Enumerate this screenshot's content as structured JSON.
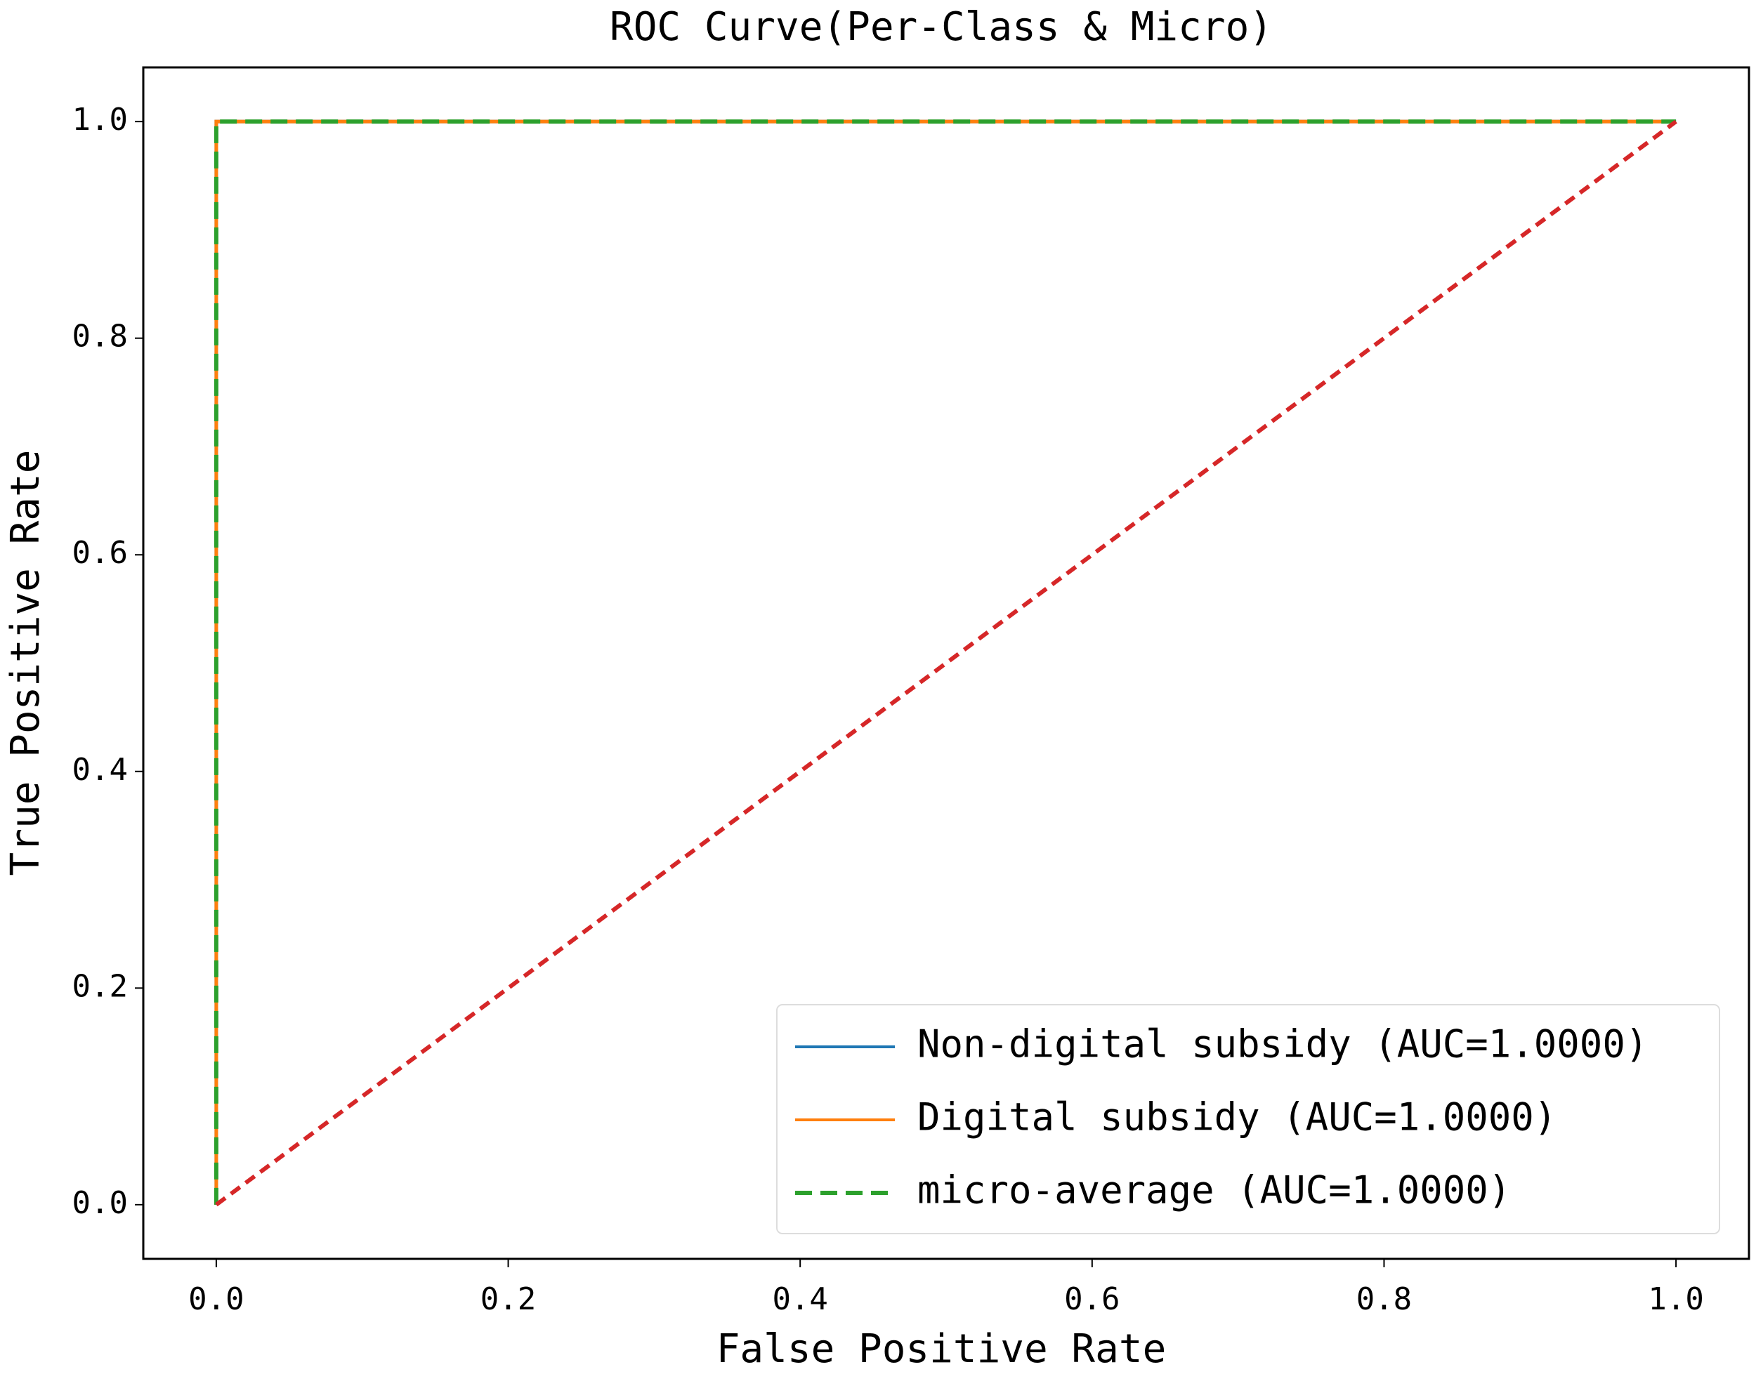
{
  "chart_data": {
    "type": "line",
    "title": "ROC Curve(Per-Class & Micro)",
    "x_label": "False Positive Rate",
    "y_label": "True Positive Rate",
    "xlim": [
      -0.05,
      1.05
    ],
    "ylim": [
      -0.05,
      1.05
    ],
    "xticks": [
      {
        "value": 0,
        "label": "0.0"
      },
      0.2,
      0.4,
      0.6,
      0.8,
      {
        "value": 1,
        "label": "1.0"
      }
    ],
    "yticks": [
      {
        "value": 0,
        "label": "0.0"
      },
      0.2,
      0.4,
      0.6,
      0.8,
      {
        "value": 1,
        "label": "1.0"
      }
    ],
    "grid": false,
    "legend": "lower right",
    "series": [
      {
        "name": "Non-digital subsidy (AUC=1.0000)",
        "color": "#1f77b4",
        "dash": false,
        "x": [
          0,
          0,
          1
        ],
        "values": [
          0,
          1,
          1
        ]
      },
      {
        "name": "Digital subsidy (AUC=1.0000)",
        "color": "#ff7f0e",
        "dash": false,
        "x": [
          0,
          0,
          1
        ],
        "values": [
          0,
          1,
          1
        ]
      },
      {
        "name": "micro-average (AUC=1.0000)",
        "color": "#2ca02c",
        "dash": true,
        "x": [
          0,
          0,
          1
        ],
        "values": [
          0,
          1,
          1
        ]
      },
      {
        "color": "#d62728",
        "dash": true,
        "x": [
          0,
          1
        ],
        "values": [
          0,
          1
        ]
      }
    ]
  }
}
